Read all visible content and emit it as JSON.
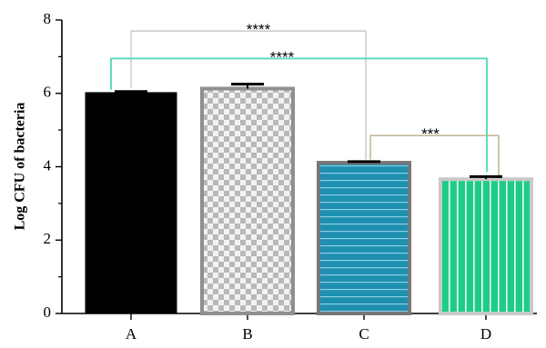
{
  "chart_data": {
    "type": "bar",
    "categories": [
      "A",
      "B",
      "C",
      "D"
    ],
    "values": [
      6.02,
      6.13,
      4.11,
      3.66
    ],
    "errors": [
      0.03,
      0.12,
      0.03,
      0.07
    ],
    "ylabel": "Log CFU of bacteria",
    "xlabel": "",
    "ylim": [
      0,
      8
    ],
    "yticks": [
      0,
      2,
      4,
      6,
      8
    ],
    "bar_styles": [
      {
        "pattern": "solid",
        "fill": "#000000",
        "edge": "#000000"
      },
      {
        "pattern": "checker",
        "fill": "#b9b9b9",
        "fill2": "#f2f2f2",
        "edge": "#8f8f8f"
      },
      {
        "pattern": "horizontal-lines",
        "fill": "#1f8fb0",
        "line": "#8ad0e6",
        "edge": "#777777"
      },
      {
        "pattern": "vertical-lines",
        "fill": "#1fcc86",
        "line": "#eafff4",
        "edge": "#c9c9c9"
      }
    ],
    "significance": [
      {
        "from": "A",
        "to": "C",
        "label": "****",
        "color": "#c9c9c9"
      },
      {
        "from": "A",
        "to": "D",
        "label": "****",
        "color": "#5fdcc0"
      },
      {
        "from": "C",
        "to": "D",
        "label": "***",
        "color": "#b8b08a"
      }
    ]
  }
}
